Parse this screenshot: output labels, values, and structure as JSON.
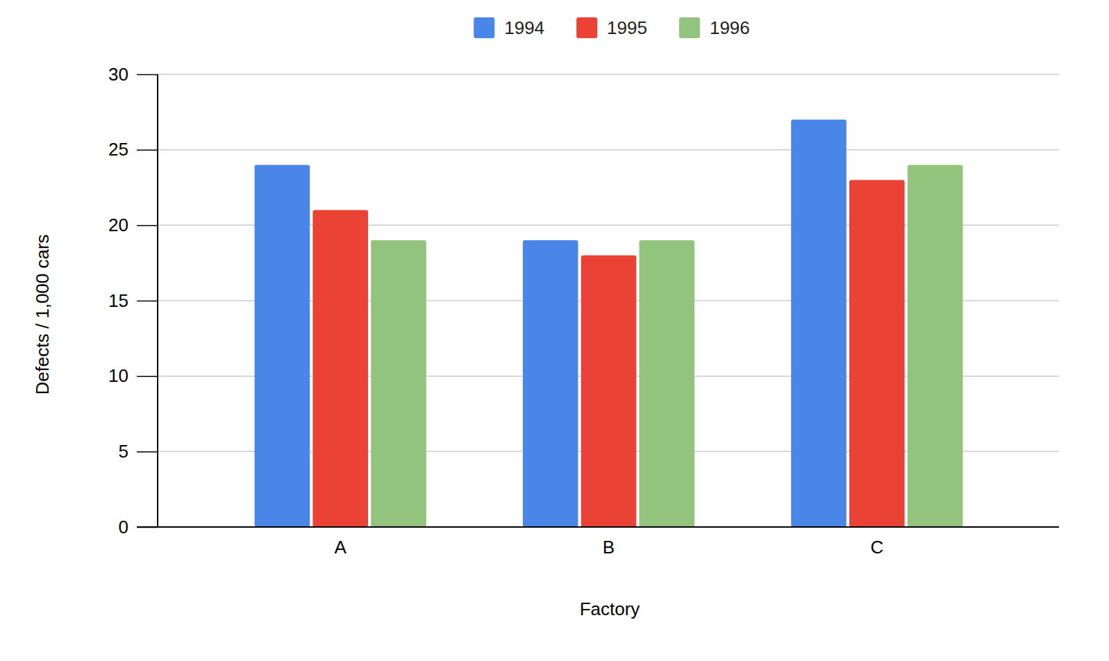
{
  "chart_data": {
    "type": "bar",
    "x_label": "Factory",
    "y_label": "Defects / 1,000 cars",
    "categories": [
      "A",
      "B",
      "C"
    ],
    "series": [
      {
        "name": "1994",
        "color": "#4a86e8",
        "values": [
          24,
          19,
          27
        ]
      },
      {
        "name": "1995",
        "color": "#ea4335",
        "values": [
          21,
          18,
          23
        ]
      },
      {
        "name": "1996",
        "color": "#93c47d",
        "values": [
          19,
          19,
          24
        ]
      }
    ],
    "ylim": [
      0,
      30
    ],
    "yticks": [
      0,
      5,
      10,
      15,
      20,
      25,
      30
    ],
    "grid": true,
    "legend": "top"
  }
}
